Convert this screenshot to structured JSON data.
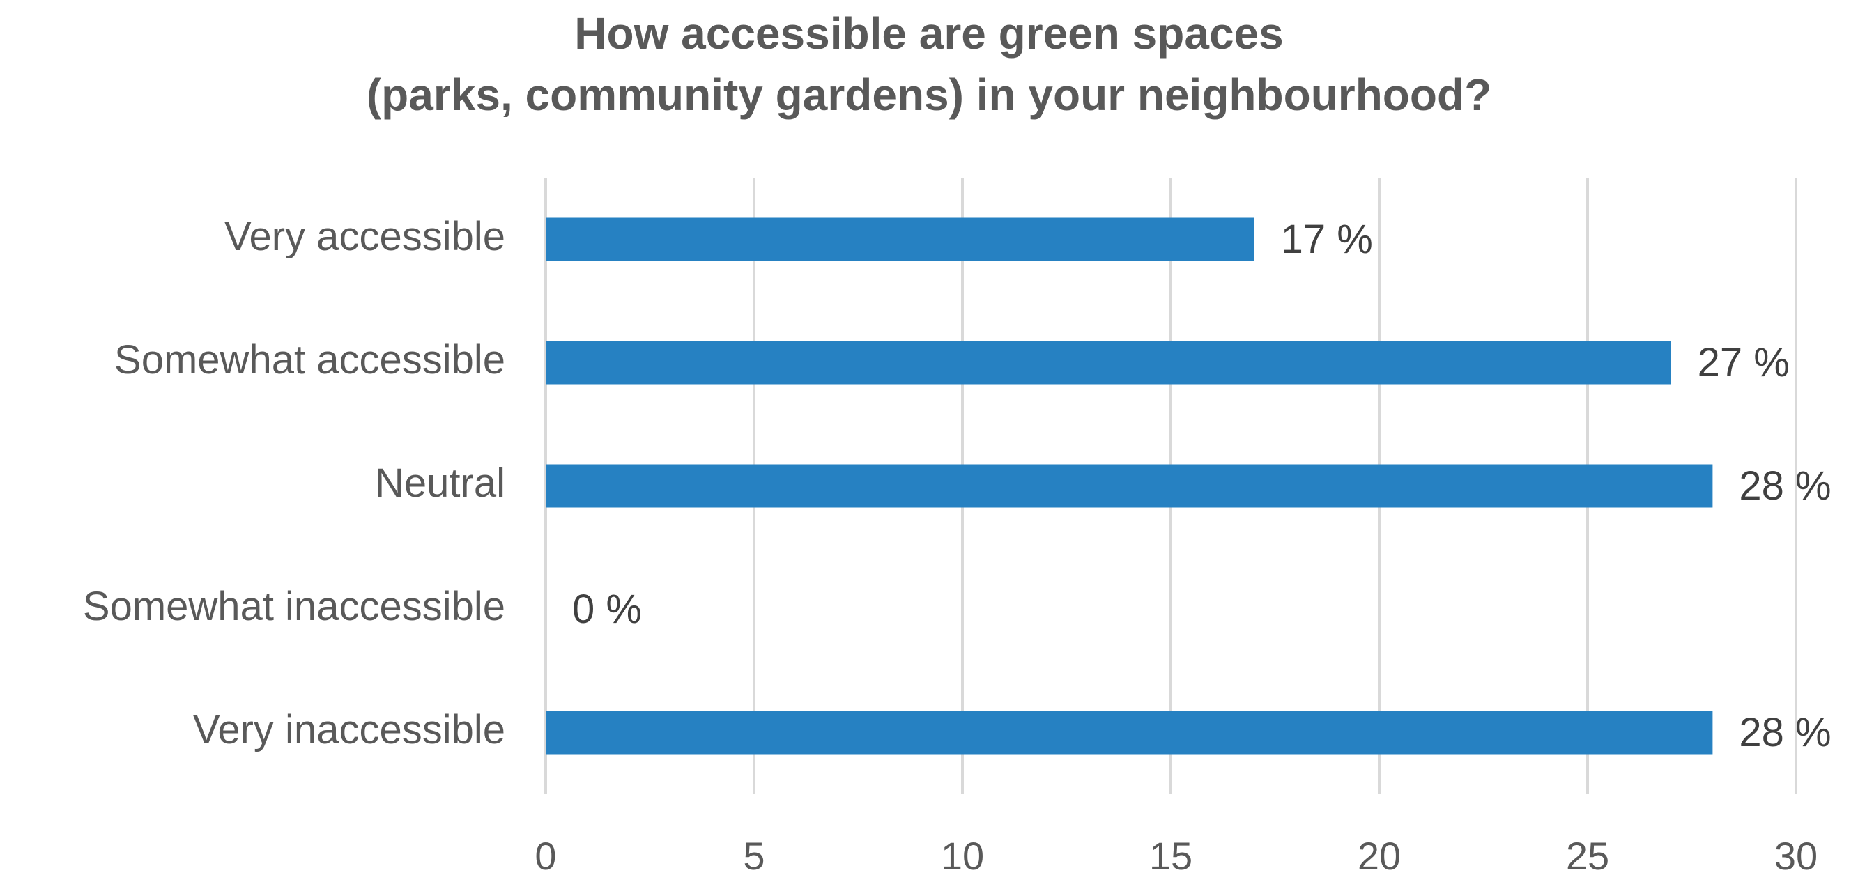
{
  "chart_data": {
    "type": "bar",
    "orientation": "horizontal",
    "title": [
      "How accessible are green spaces",
      "(parks, community  gardens) in your neighbourhood?"
    ],
    "categories": [
      "Very accessible",
      "Somewhat accessible",
      "Neutral",
      "Somewhat inaccessible",
      "Very inaccessible"
    ],
    "values": [
      17,
      27,
      28,
      0,
      28
    ],
    "data_labels": [
      "17 %",
      "27 %",
      "28 %",
      "0 %",
      "28 %"
    ],
    "xlim": [
      0,
      30
    ],
    "xticks": [
      0,
      5,
      10,
      15,
      20,
      25,
      30
    ],
    "xlabel": "",
    "ylabel": "",
    "grid": true,
    "legend": "none",
    "bar_color": "#2681C2",
    "gridline_color": "#D9D9D9",
    "text_color": "#595959"
  }
}
